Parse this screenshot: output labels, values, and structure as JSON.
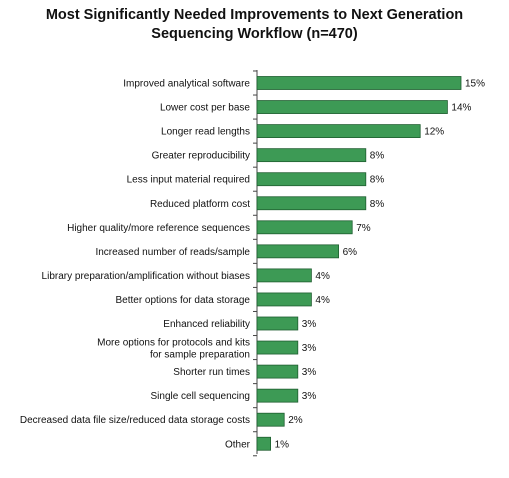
{
  "chart_data": {
    "type": "bar",
    "orientation": "horizontal",
    "title_lines": [
      "Most Significantly Needed Improvements to Next Generation",
      "Sequencing Workflow (n=470)"
    ],
    "categories": [
      "Improved analytical software",
      "Lower cost per base",
      "Longer read lengths",
      "Greater reproducibility",
      "Less input material required",
      "Reduced platform cost",
      "Higher quality/more reference sequences",
      "Increased number of reads/sample",
      "Library preparation/amplification without biases",
      "Better options for data storage",
      "Enhanced reliability",
      "More options for protocols and kits for sample preparation",
      "Shorter run times",
      "Single cell sequencing",
      "Decreased data file size/reduced data storage costs",
      "Other"
    ],
    "values": [
      15,
      14,
      12,
      8,
      8,
      8,
      7,
      6,
      4,
      4,
      3,
      3,
      3,
      3,
      2,
      1
    ],
    "value_labels": [
      "15%",
      "14%",
      "12%",
      "8%",
      "8%",
      "8%",
      "7%",
      "6%",
      "4%",
      "4%",
      "3%",
      "3%",
      "3%",
      "3%",
      "2%",
      "1%"
    ],
    "xlim": [
      0,
      15
    ],
    "grid": false,
    "legend": "none",
    "bar_color": "#3d9a55",
    "bar_edge_color": "#1f5e30"
  }
}
